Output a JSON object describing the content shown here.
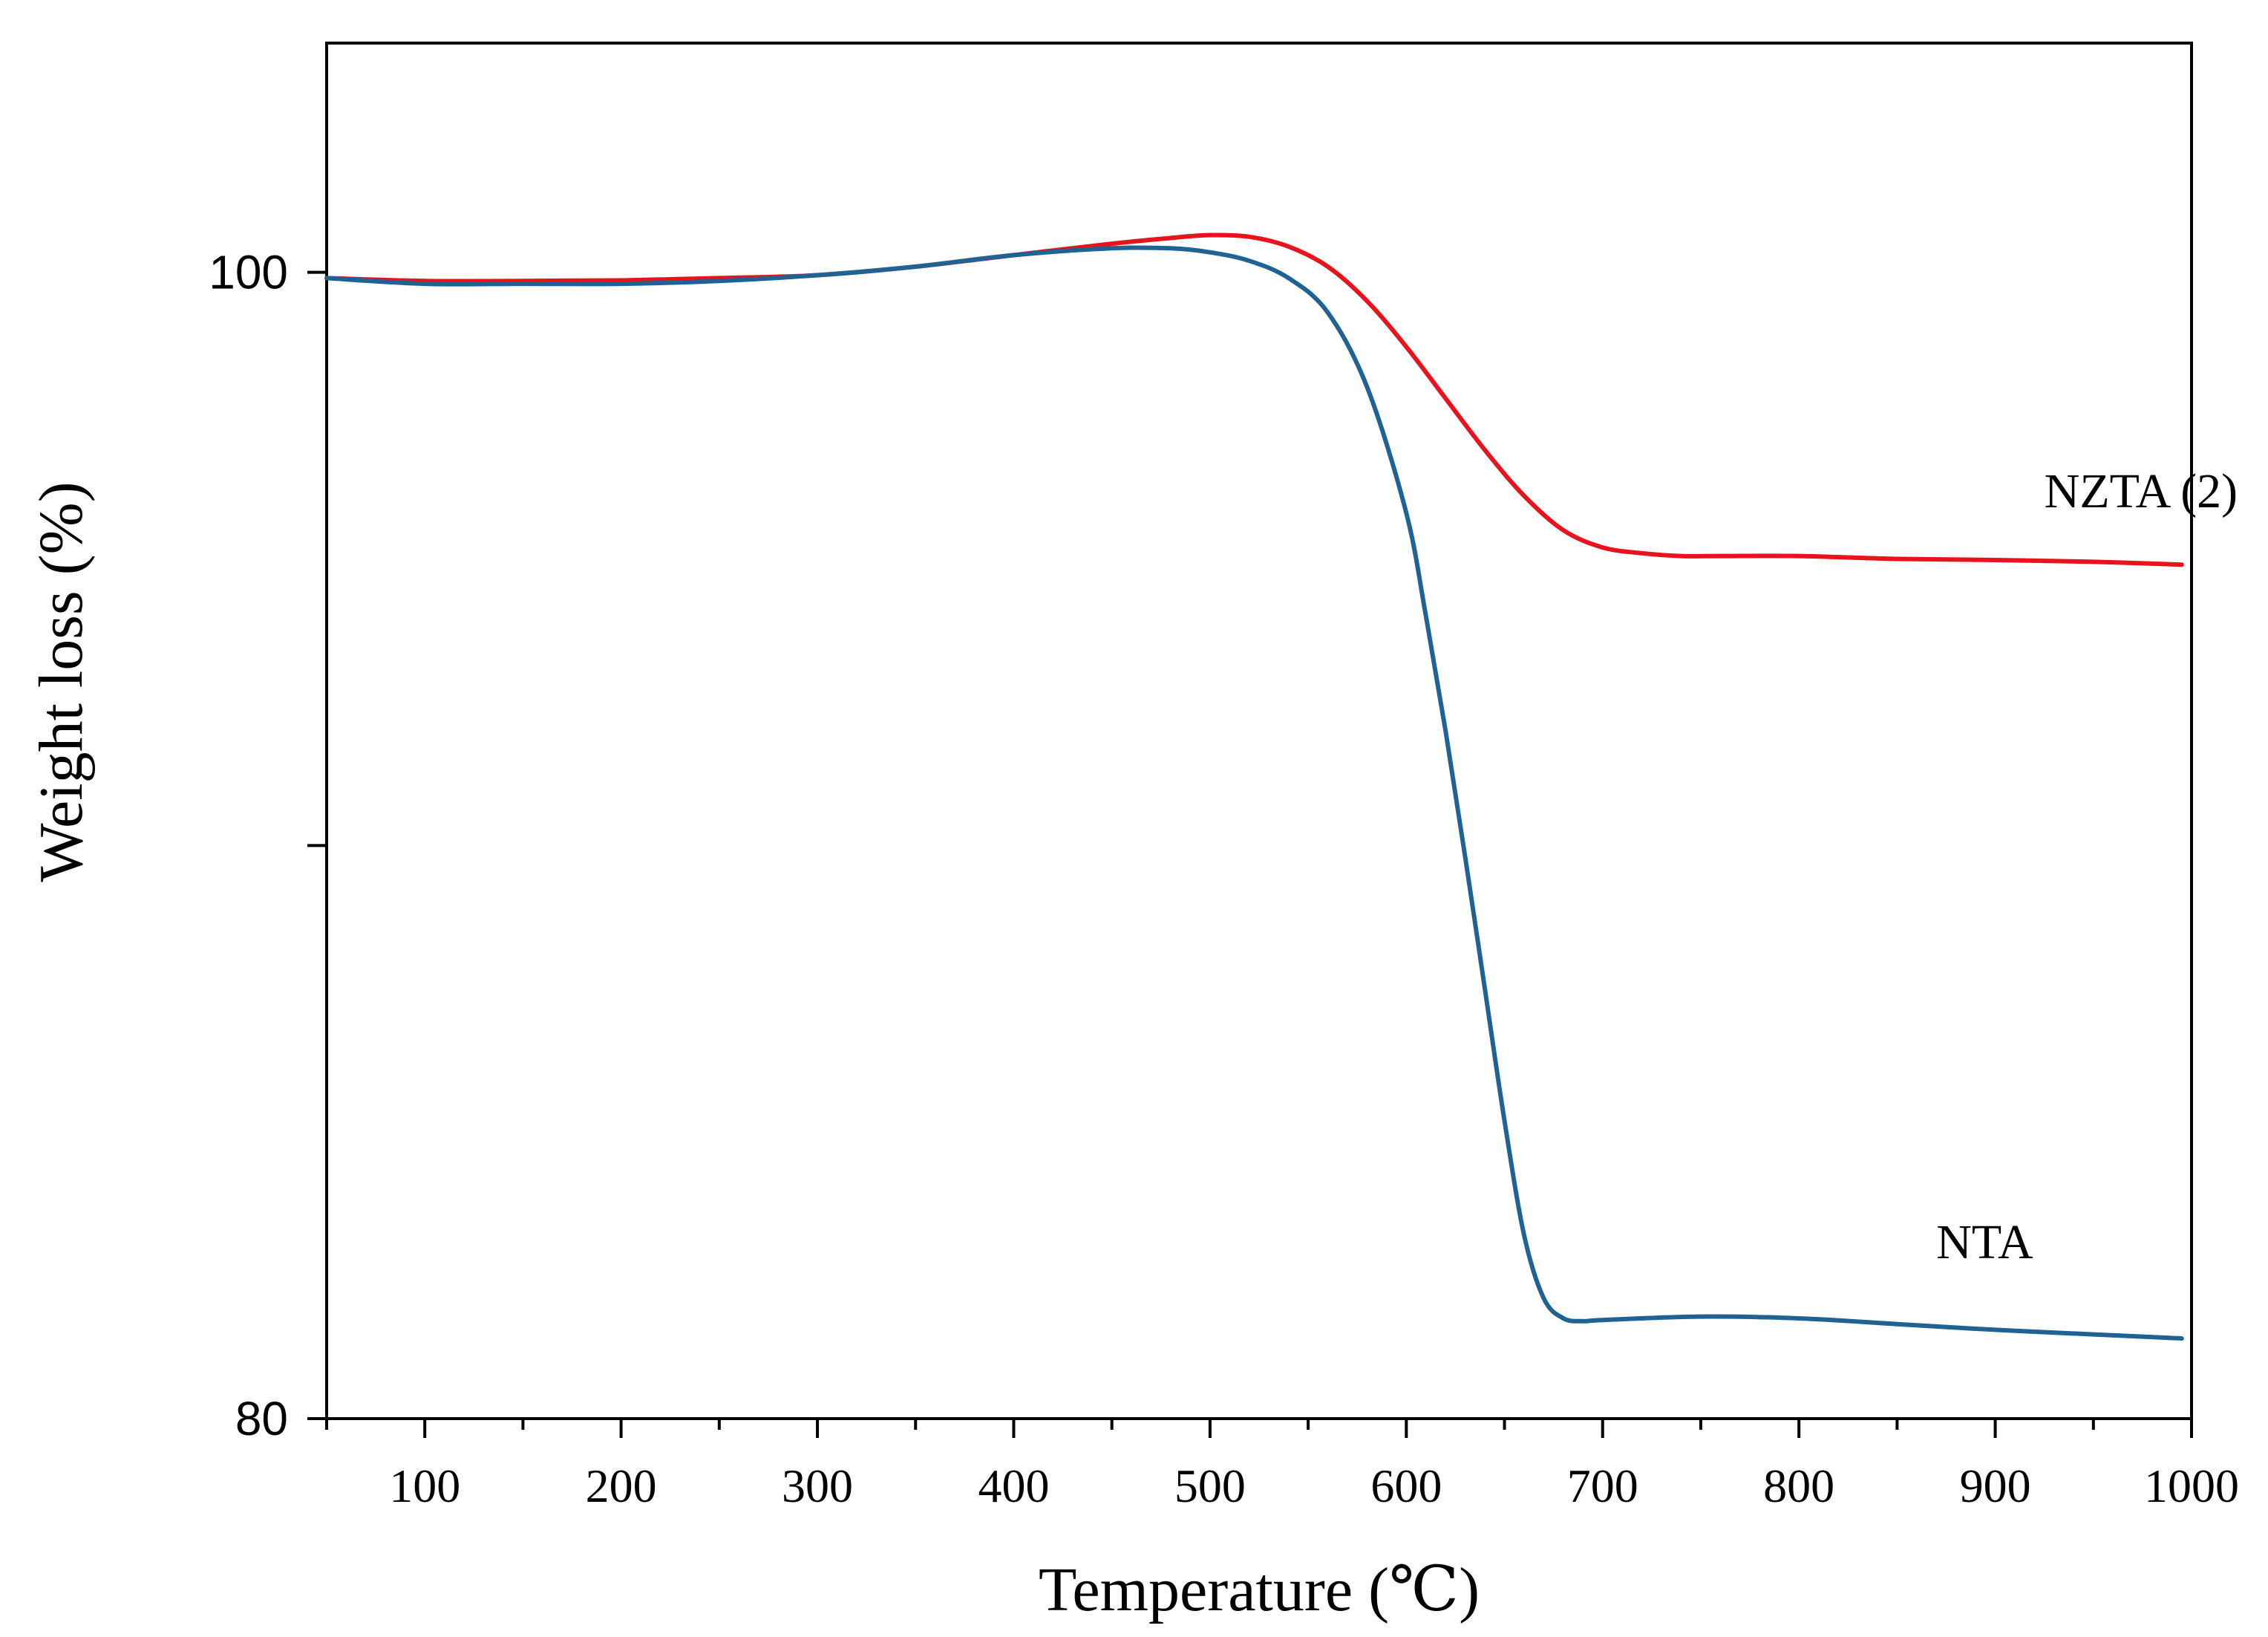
{
  "chart_data": {
    "type": "line",
    "title": "",
    "xlabel": "Temperature (℃)",
    "ylabel": "Weight loss (%)",
    "xlim": [
      50,
      1000
    ],
    "ylim": [
      80,
      104
    ],
    "x_major_ticks": [
      100,
      200,
      300,
      400,
      500,
      600,
      700,
      800,
      900,
      1000
    ],
    "x_minor_ticks": [
      50,
      150,
      250,
      350,
      450,
      550,
      650,
      750,
      850,
      950
    ],
    "y_major_ticks": [
      80,
      90,
      100
    ],
    "y_tick_labels": [
      {
        "value": 80,
        "label": "80"
      },
      {
        "value": 100,
        "label": "100"
      }
    ],
    "grid": false,
    "series": [
      {
        "name": "NZTA (2)",
        "color": "#e8131c",
        "label_x": 925,
        "label_y": 95.9,
        "x": [
          50,
          100,
          150,
          200,
          250,
          300,
          350,
          400,
          450,
          480,
          500,
          520,
          540,
          560,
          580,
          600,
          620,
          640,
          660,
          680,
          700,
          720,
          740,
          760,
          800,
          850,
          900,
          950,
          995
        ],
        "y": [
          99.9,
          99.85,
          99.85,
          99.86,
          99.9,
          99.95,
          100.1,
          100.3,
          100.5,
          100.6,
          100.65,
          100.62,
          100.45,
          100.1,
          99.5,
          98.7,
          97.8,
          96.9,
          96.1,
          95.5,
          95.2,
          95.1,
          95.05,
          95.05,
          95.05,
          95.0,
          94.98,
          94.95,
          94.9
        ]
      },
      {
        "name": "NTA",
        "color": "#1f6394",
        "label_x": 870,
        "label_y": 82.8,
        "x": [
          50,
          100,
          150,
          200,
          250,
          300,
          350,
          400,
          450,
          480,
          500,
          520,
          540,
          560,
          580,
          600,
          610,
          620,
          630,
          640,
          650,
          660,
          670,
          680,
          690,
          700,
          750,
          800,
          850,
          900,
          950,
          995
        ],
        "y": [
          99.9,
          99.8,
          99.8,
          99.8,
          99.85,
          99.95,
          100.1,
          100.3,
          100.42,
          100.42,
          100.35,
          100.2,
          99.9,
          99.3,
          98.0,
          95.8,
          94.0,
          92.0,
          89.8,
          87.5,
          85.2,
          83.2,
          82.1,
          81.75,
          81.7,
          81.72,
          81.78,
          81.75,
          81.65,
          81.55,
          81.47,
          81.4
        ]
      }
    ]
  }
}
